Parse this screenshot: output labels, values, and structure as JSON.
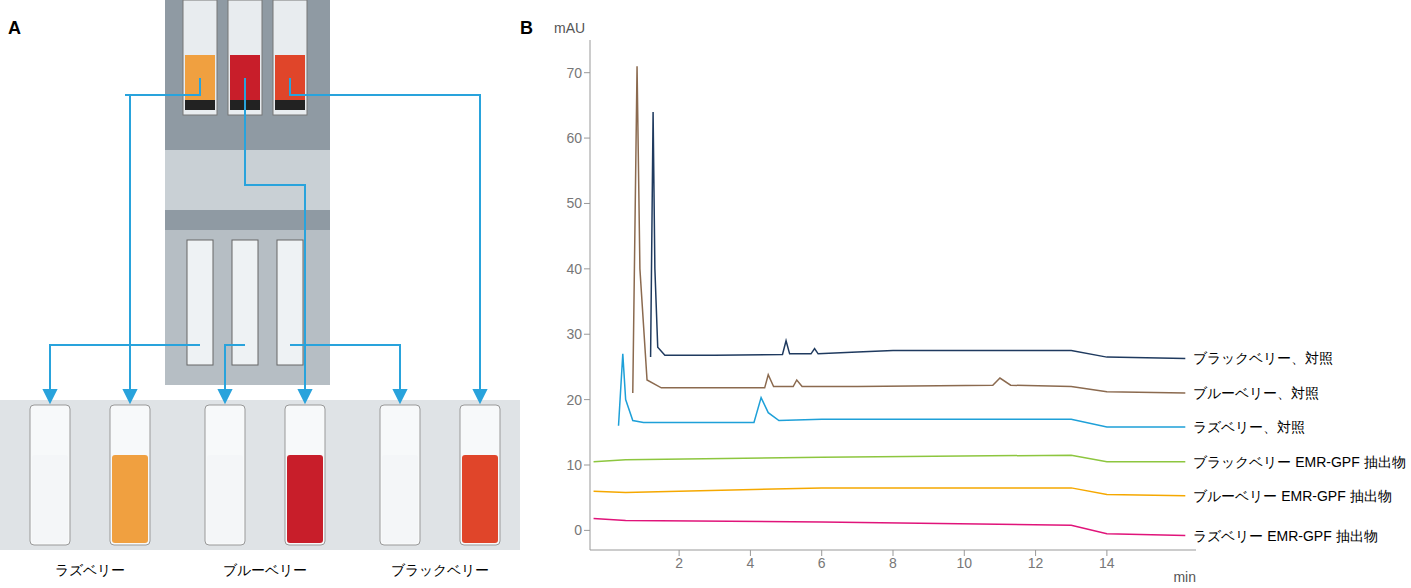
{
  "panel_a": {
    "letter": "A",
    "labels": [
      "ラズベリー",
      "ブルーベリー",
      "ブラックベリー"
    ]
  },
  "chart_data": {
    "letter": "B",
    "type": "line",
    "y_label": "mAU",
    "x_label": "min",
    "xlim": [
      -0.5,
      16.5
    ],
    "xticks": [
      2,
      4,
      6,
      8,
      10,
      12,
      14
    ],
    "ylim": [
      -3,
      75
    ],
    "yticks": [
      0,
      10,
      20,
      30,
      40,
      50,
      60,
      70
    ],
    "grid": false,
    "series": [
      {
        "name": "ブラックベリー、対照",
        "color": "#1f3a5f",
        "x": [
          1.2,
          1.27,
          1.32,
          1.4,
          1.6,
          3.0,
          4.9,
          5.0,
          5.1,
          5.7,
          5.8,
          5.9,
          7.0,
          8.0,
          13.0,
          14.0,
          16.2
        ],
        "values": [
          26.5,
          64.0,
          40.0,
          28.0,
          26.8,
          26.8,
          26.9,
          29.0,
          27.0,
          27.0,
          27.8,
          27.0,
          27.3,
          27.5,
          27.5,
          26.5,
          26.3
        ]
      },
      {
        "name": "ブルーベリー、対照",
        "color": "#8b6a4f",
        "x": [
          0.7,
          0.82,
          0.9,
          1.1,
          1.5,
          4.4,
          4.5,
          4.65,
          5.2,
          5.3,
          5.45,
          7.0,
          10.8,
          11.0,
          11.3,
          13.0,
          14.0,
          16.2
        ],
        "values": [
          21.0,
          71.0,
          40.0,
          23.0,
          21.8,
          21.8,
          23.8,
          22.0,
          22.0,
          23.0,
          22.0,
          22.0,
          22.2,
          23.3,
          22.2,
          22.0,
          21.2,
          21.0
        ]
      },
      {
        "name": "ラズベリー、対照",
        "color": "#1ea0d8",
        "x": [
          0.3,
          0.42,
          0.5,
          0.7,
          1.0,
          4.1,
          4.3,
          4.5,
          4.8,
          6.0,
          12.0,
          13.0,
          14.0,
          16.2
        ],
        "values": [
          16.0,
          27.0,
          20.0,
          16.8,
          16.5,
          16.5,
          20.3,
          18.0,
          16.8,
          17.0,
          17.0,
          17.0,
          15.8,
          15.8
        ]
      },
      {
        "name": "ブラックベリー EMR-GPF 抽出物",
        "color": "#8dc63f",
        "x": [
          -0.4,
          0.5,
          6.0,
          13.0,
          14.0,
          16.2
        ],
        "values": [
          10.5,
          10.8,
          11.2,
          11.5,
          10.5,
          10.5
        ]
      },
      {
        "name": "ブルーベリー EMR-GPF 抽出物",
        "color": "#f5a800",
        "x": [
          -0.4,
          0.5,
          6.0,
          13.0,
          14.0,
          16.2
        ],
        "values": [
          6.0,
          5.8,
          6.5,
          6.5,
          5.5,
          5.3
        ]
      },
      {
        "name": "ラズベリー EMR-GPF 抽出物",
        "color": "#e0147a",
        "x": [
          -0.4,
          0.5,
          6.0,
          13.0,
          14.0,
          16.2
        ],
        "values": [
          1.8,
          1.5,
          1.3,
          0.8,
          -0.5,
          -0.8
        ]
      }
    ]
  }
}
